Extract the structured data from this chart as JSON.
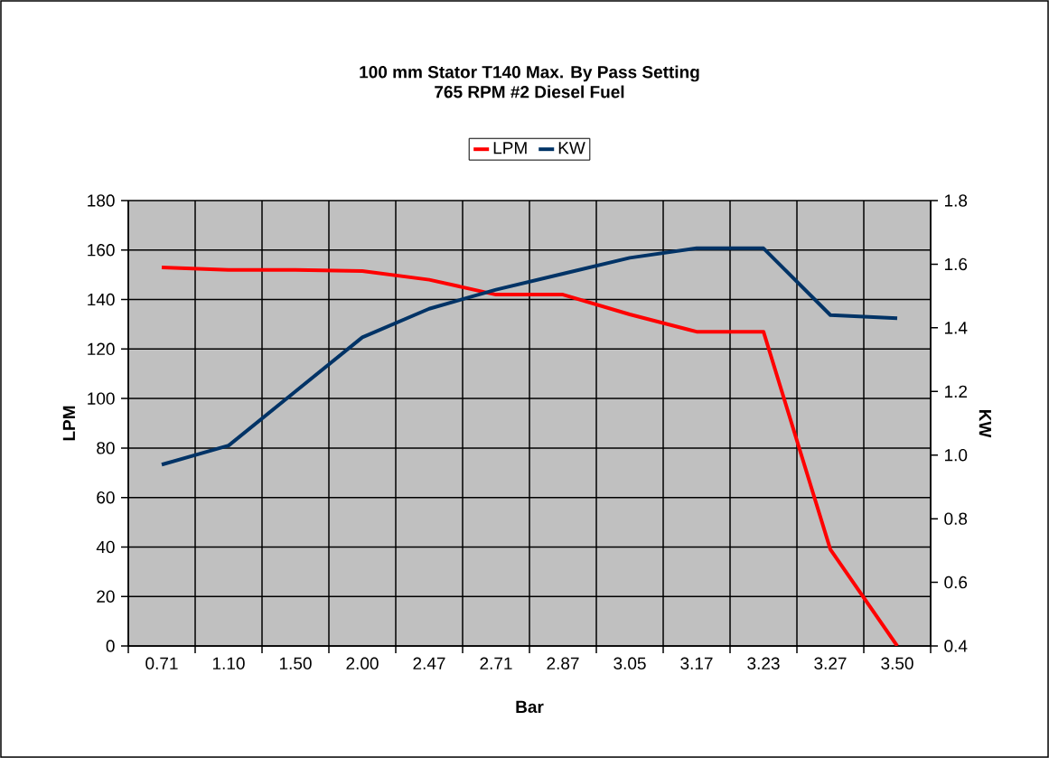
{
  "chart_data": {
    "type": "line",
    "title": "100 mm Stator T140 Max. By Pass Setting",
    "subtitle": "765 RPM #2 Diesel Fuel",
    "xlabel": "Bar",
    "ylabel": "LPM",
    "y2label": "KW",
    "categories": [
      "0.71",
      "1.10",
      "1.50",
      "2.00",
      "2.47",
      "2.71",
      "2.87",
      "3.05",
      "3.17",
      "3.23",
      "3.27",
      "3.50"
    ],
    "series": [
      {
        "name": "LPM",
        "color": "#ff0000",
        "values": [
          153,
          152,
          152,
          151.5,
          148,
          142,
          142,
          134,
          127,
          127,
          39,
          0
        ]
      },
      {
        "name": "KW",
        "color": "#003366",
        "axis": "y2",
        "values": [
          0.97,
          1.03,
          1.2,
          1.37,
          1.46,
          1.52,
          1.57,
          1.62,
          1.65,
          1.65,
          1.44,
          1.43
        ]
      }
    ],
    "ylim": [
      0,
      180
    ],
    "yticks": [
      0,
      20,
      40,
      60,
      80,
      100,
      120,
      140,
      160,
      180
    ],
    "y2lim": [
      0.4,
      1.8
    ],
    "y2ticks": [
      0.4,
      0.6,
      0.8,
      {
        "value": 1,
        "label": "1.0"
      },
      1.2,
      1.4,
      1.6,
      1.8
    ],
    "grid": true,
    "legend": "top",
    "marker": "none",
    "line_style": "solid"
  }
}
